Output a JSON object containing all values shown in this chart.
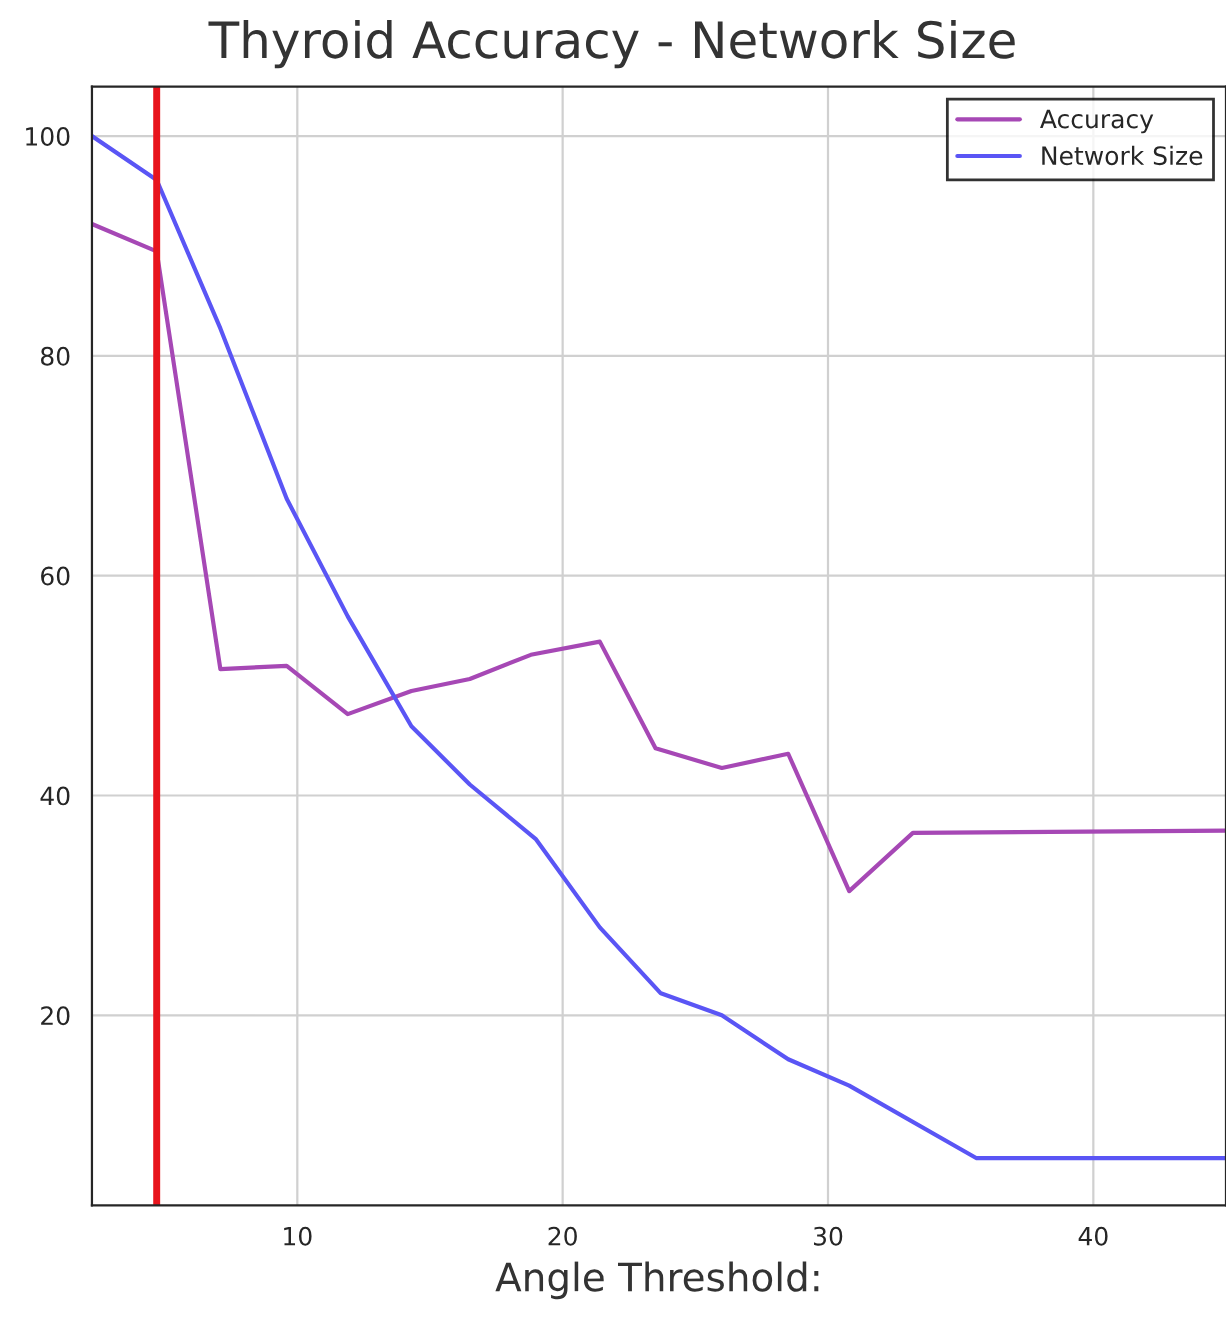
{
  "chart_data": {
    "type": "line",
    "title": "Thyroid Accuracy - Network Size",
    "xlabel": "Angle Threshold:",
    "series": [
      {
        "name": "Accuracy",
        "color": "#a648b5",
        "x": [
          2.26,
          4.7,
          7.1,
          9.6,
          11.9,
          14.3,
          16.5,
          18.8,
          21.4,
          23.5,
          26,
          28.5,
          30.8,
          33.2,
          45
        ],
        "values": [
          92,
          89.5,
          51.5,
          51.8,
          47.4,
          49.5,
          50.6,
          52.8,
          54,
          44.3,
          42.5,
          43.8,
          31.3,
          36.6,
          36.8
        ]
      },
      {
        "name": "Network Size",
        "color": "#5a55f5",
        "x": [
          2.26,
          4.7,
          7.1,
          9.6,
          11.9,
          14.3,
          16.5,
          19,
          21.4,
          23.7,
          26,
          28.5,
          30.8,
          35.6,
          45
        ],
        "values": [
          100,
          96,
          82.5,
          67,
          56.3,
          46.3,
          41,
          36,
          28,
          22,
          20,
          16,
          13.6,
          7,
          7
        ]
      }
    ],
    "xlim": [
      2.26,
      45
    ],
    "ylim": [
      2.7,
      104.5
    ],
    "xticks": [
      10,
      20,
      30,
      40
    ],
    "yticks": [
      20,
      40,
      60,
      80,
      100
    ],
    "ref_lines": [
      {
        "axis": "x",
        "value": 4.7,
        "color": "#e8141c"
      }
    ],
    "grid": true,
    "legend": "top right",
    "line_style": "solid",
    "marker": "none"
  }
}
